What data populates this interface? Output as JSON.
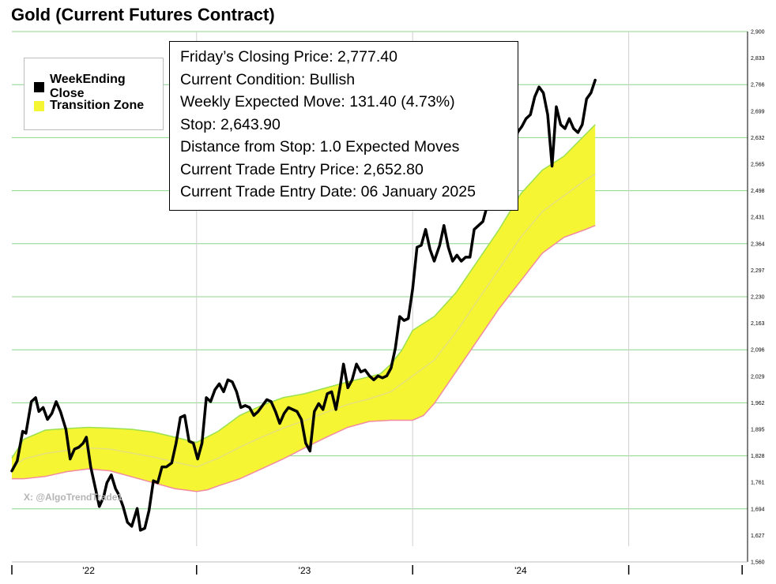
{
  "chart_data": {
    "type": "line",
    "title": "Gold (Current Futures Contract)",
    "ylim": [
      1560,
      2900
    ],
    "yticks": [
      1560,
      1627,
      1694,
      1761,
      1828,
      1895,
      1962,
      2029,
      2096,
      2163,
      2230,
      2297,
      2364,
      2431,
      2498,
      2565,
      2632,
      2699,
      2766,
      2833,
      2900
    ],
    "ytick_labels": [
      "1,560",
      "1,627",
      "1,694",
      "1,761",
      "1,828",
      "1,895",
      "1,962",
      "2,029",
      "2,096",
      "2,163",
      "2,230",
      "2,297",
      "2,364",
      "2,431",
      "2,498",
      "2,565",
      "2,632",
      "2,699",
      "2,766",
      "2,833",
      "2,900"
    ],
    "xticks": [
      {
        "label": "'22",
        "x": 2022.0
      },
      {
        "label": "'23",
        "x": 2023.0
      },
      {
        "label": "'24",
        "x": 2024.0
      }
    ],
    "xlim": [
      2021.645,
      2025.05
    ],
    "grid": true,
    "legend": {
      "position": "top-left",
      "entries": [
        {
          "label": "WeekEnding Close",
          "color": "#000000"
        },
        {
          "label": "Transition Zone",
          "color": "#f5f534"
        }
      ]
    },
    "series": [
      {
        "name": "WeekEnding Close",
        "color": "#000000",
        "points": [
          [
            2021.645,
            1790
          ],
          [
            2021.67,
            1815
          ],
          [
            2021.695,
            1890
          ],
          [
            2021.71,
            1885
          ],
          [
            2021.735,
            1965
          ],
          [
            2021.755,
            1975
          ],
          [
            2021.77,
            1940
          ],
          [
            2021.79,
            1950
          ],
          [
            2021.81,
            1920
          ],
          [
            2021.83,
            1935
          ],
          [
            2021.85,
            1965
          ],
          [
            2021.87,
            1940
          ],
          [
            2021.895,
            1895
          ],
          [
            2021.915,
            1820
          ],
          [
            2021.935,
            1845
          ],
          [
            2021.955,
            1850
          ],
          [
            2021.975,
            1860
          ],
          [
            2021.99,
            1875
          ],
          [
            2022.01,
            1800
          ],
          [
            2022.03,
            1750
          ],
          [
            2022.05,
            1700
          ],
          [
            2022.07,
            1725
          ],
          [
            2022.085,
            1760
          ],
          [
            2022.105,
            1780
          ],
          [
            2022.125,
            1745
          ],
          [
            2022.14,
            1730
          ],
          [
            2022.16,
            1700
          ],
          [
            2022.18,
            1660
          ],
          [
            2022.2,
            1650
          ],
          [
            2022.225,
            1695
          ],
          [
            2022.24,
            1640
          ],
          [
            2022.26,
            1645
          ],
          [
            2022.28,
            1690
          ],
          [
            2022.3,
            1765
          ],
          [
            2022.32,
            1760
          ],
          [
            2022.34,
            1800
          ],
          [
            2022.36,
            1800
          ],
          [
            2022.385,
            1810
          ],
          [
            2022.405,
            1860
          ],
          [
            2022.425,
            1925
          ],
          [
            2022.445,
            1930
          ],
          [
            2022.465,
            1865
          ],
          [
            2022.485,
            1860
          ],
          [
            2022.505,
            1820
          ],
          [
            2022.525,
            1860
          ],
          [
            2022.545,
            1975
          ],
          [
            2022.565,
            1965
          ],
          [
            2022.585,
            1995
          ],
          [
            2022.605,
            2010
          ],
          [
            2022.625,
            1990
          ],
          [
            2022.645,
            2020
          ],
          [
            2022.665,
            2015
          ],
          [
            2022.685,
            1990
          ],
          [
            2022.705,
            1950
          ],
          [
            2022.725,
            1955
          ],
          [
            2022.745,
            1950
          ],
          [
            2022.765,
            1930
          ],
          [
            2022.785,
            1940
          ],
          [
            2022.805,
            1955
          ],
          [
            2022.825,
            1970
          ],
          [
            2022.845,
            1965
          ],
          [
            2022.865,
            1940
          ],
          [
            2022.885,
            1910
          ],
          [
            2022.905,
            1935
          ],
          [
            2022.925,
            1950
          ],
          [
            2022.945,
            1945
          ],
          [
            2022.965,
            1940
          ],
          [
            2022.985,
            1920
          ],
          [
            2023.005,
            1860
          ],
          [
            2023.025,
            1840
          ],
          [
            2023.045,
            1940
          ],
          [
            2023.065,
            1960
          ],
          [
            2023.085,
            1945
          ],
          [
            2023.105,
            1985
          ],
          [
            2023.125,
            1990
          ],
          [
            2023.145,
            1945
          ],
          [
            2023.165,
            2005
          ],
          [
            2023.18,
            2060
          ],
          [
            2023.2,
            2000
          ],
          [
            2023.22,
            2020
          ],
          [
            2023.24,
            2060
          ],
          [
            2023.26,
            2040
          ],
          [
            2023.28,
            2045
          ],
          [
            2023.3,
            2030
          ],
          [
            2023.32,
            2020
          ],
          [
            2023.34,
            2030
          ],
          [
            2023.36,
            2025
          ],
          [
            2023.38,
            2030
          ],
          [
            2023.4,
            2050
          ],
          [
            2023.42,
            2100
          ],
          [
            2023.44,
            2180
          ],
          [
            2023.46,
            2170
          ],
          [
            2023.48,
            2175
          ],
          [
            2023.5,
            2250
          ],
          [
            2023.52,
            2355
          ],
          [
            2023.54,
            2360
          ],
          [
            2023.56,
            2400
          ],
          [
            2023.58,
            2350
          ],
          [
            2023.6,
            2320
          ],
          [
            2023.625,
            2360
          ],
          [
            2023.645,
            2410
          ],
          [
            2023.665,
            2355
          ],
          [
            2023.685,
            2320
          ],
          [
            2023.705,
            2335
          ],
          [
            2023.725,
            2320
          ],
          [
            2023.745,
            2330
          ],
          [
            2023.765,
            2330
          ],
          [
            2023.785,
            2400
          ],
          [
            2023.805,
            2410
          ],
          [
            2023.825,
            2420
          ],
          [
            2023.845,
            2460
          ],
          [
            2023.865,
            2470
          ],
          [
            2023.885,
            2530
          ],
          [
            2023.905,
            2545
          ],
          [
            2023.925,
            2530
          ],
          [
            2023.945,
            2505
          ],
          [
            2023.965,
            2585
          ],
          [
            2023.985,
            2645
          ],
          [
            2024.005,
            2660
          ],
          [
            2024.025,
            2680
          ],
          [
            2024.045,
            2690
          ],
          [
            2024.065,
            2735
          ],
          [
            2024.085,
            2760
          ],
          [
            2024.105,
            2745
          ],
          [
            2024.125,
            2690
          ],
          [
            2024.145,
            2560
          ],
          [
            2024.165,
            2710
          ],
          [
            2024.185,
            2665
          ],
          [
            2024.205,
            2655
          ],
          [
            2024.225,
            2680
          ],
          [
            2024.245,
            2655
          ],
          [
            2024.265,
            2645
          ],
          [
            2024.285,
            2665
          ],
          [
            2024.305,
            2730
          ],
          [
            2024.325,
            2745
          ],
          [
            2024.345,
            2777.4
          ]
        ]
      },
      {
        "name": "Transition Zone",
        "color": "#f5f534",
        "upper": [
          [
            2021.645,
            1822
          ],
          [
            2021.7,
            1870
          ],
          [
            2021.8,
            1893
          ],
          [
            2021.9,
            1897
          ],
          [
            2022.0,
            1900
          ],
          [
            2022.1,
            1898
          ],
          [
            2022.2,
            1895
          ],
          [
            2022.3,
            1888
          ],
          [
            2022.4,
            1875
          ],
          [
            2022.5,
            1862
          ],
          [
            2022.6,
            1890
          ],
          [
            2022.7,
            1930
          ],
          [
            2022.8,
            1955
          ],
          [
            2022.9,
            1975
          ],
          [
            2023.0,
            1985
          ],
          [
            2023.1,
            2000
          ],
          [
            2023.2,
            2015
          ],
          [
            2023.3,
            2028
          ],
          [
            2023.35,
            2035
          ],
          [
            2023.4,
            2060
          ],
          [
            2023.45,
            2095
          ],
          [
            2023.5,
            2145
          ],
          [
            2023.6,
            2180
          ],
          [
            2023.7,
            2240
          ],
          [
            2023.8,
            2320
          ],
          [
            2023.9,
            2400
          ],
          [
            2024.0,
            2490
          ],
          [
            2024.1,
            2550
          ],
          [
            2024.2,
            2585
          ],
          [
            2024.3,
            2640
          ],
          [
            2024.345,
            2665
          ]
        ],
        "lower": [
          [
            2021.645,
            1770
          ],
          [
            2021.7,
            1770
          ],
          [
            2021.8,
            1776
          ],
          [
            2021.9,
            1788
          ],
          [
            2022.0,
            1795
          ],
          [
            2022.1,
            1790
          ],
          [
            2022.2,
            1775
          ],
          [
            2022.3,
            1760
          ],
          [
            2022.4,
            1745
          ],
          [
            2022.5,
            1738
          ],
          [
            2022.55,
            1742
          ],
          [
            2022.6,
            1752
          ],
          [
            2022.7,
            1770
          ],
          [
            2022.8,
            1795
          ],
          [
            2022.9,
            1820
          ],
          [
            2023.0,
            1848
          ],
          [
            2023.1,
            1875
          ],
          [
            2023.2,
            1900
          ],
          [
            2023.3,
            1915
          ],
          [
            2023.4,
            1918
          ],
          [
            2023.5,
            1918
          ],
          [
            2023.55,
            1930
          ],
          [
            2023.6,
            1960
          ],
          [
            2023.7,
            2040
          ],
          [
            2023.8,
            2120
          ],
          [
            2023.9,
            2200
          ],
          [
            2024.0,
            2270
          ],
          [
            2024.1,
            2340
          ],
          [
            2024.2,
            2380
          ],
          [
            2024.3,
            2400
          ],
          [
            2024.345,
            2410
          ]
        ],
        "mid": [
          [
            2021.645,
            1796
          ],
          [
            2021.7,
            1820
          ],
          [
            2021.8,
            1834
          ],
          [
            2021.9,
            1842
          ],
          [
            2022.0,
            1848
          ],
          [
            2022.1,
            1845
          ],
          [
            2022.2,
            1835
          ],
          [
            2022.3,
            1825
          ],
          [
            2022.4,
            1812
          ],
          [
            2022.5,
            1800
          ],
          [
            2022.6,
            1822
          ],
          [
            2022.7,
            1850
          ],
          [
            2022.8,
            1875
          ],
          [
            2022.9,
            1898
          ],
          [
            2023.0,
            1917
          ],
          [
            2023.1,
            1938
          ],
          [
            2023.2,
            1958
          ],
          [
            2023.3,
            1972
          ],
          [
            2023.4,
            1990
          ],
          [
            2023.5,
            2030
          ],
          [
            2023.6,
            2070
          ],
          [
            2023.7,
            2140
          ],
          [
            2023.8,
            2220
          ],
          [
            2023.9,
            2300
          ],
          [
            2024.0,
            2380
          ],
          [
            2024.1,
            2445
          ],
          [
            2024.2,
            2485
          ],
          [
            2024.3,
            2525
          ],
          [
            2024.345,
            2540
          ]
        ]
      }
    ]
  },
  "info_box": {
    "lines": [
      "Friday’s Closing Price: 2,777.40",
      "Current Condition: Bullish",
      "Weekly Expected Move: 131.40 (4.73%)",
      "Stop: 2,643.90",
      "Distance from Stop: 1.0 Expected Moves",
      "Current Trade Entry Price: 2,652.80",
      "Current Trade Entry Date: 06 January 2025"
    ]
  },
  "watermark": "X: @AlgoTrendTrade1"
}
